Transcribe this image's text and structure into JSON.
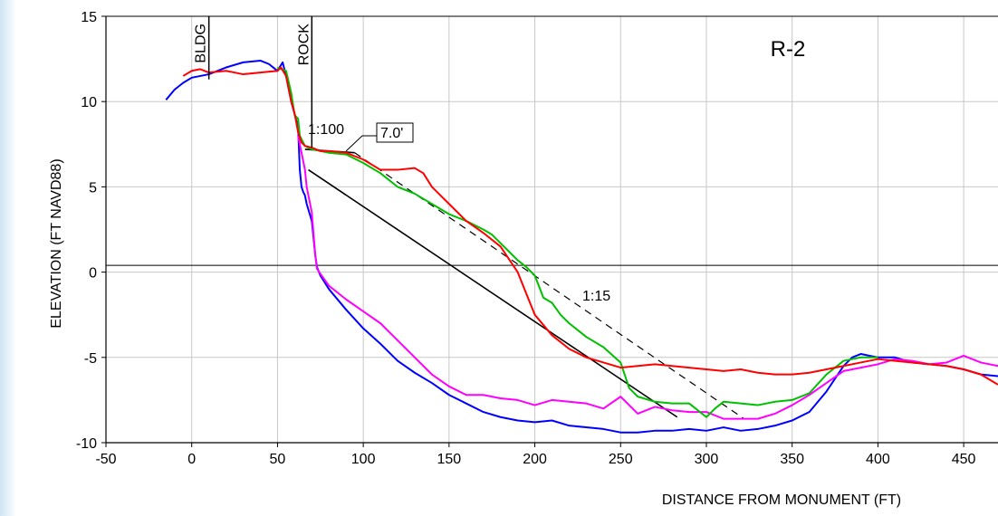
{
  "chart_data": {
    "type": "line",
    "title": "R-2",
    "xlabel": "DISTANCE FROM MONUMENT (FT)",
    "ylabel": "ELEVATION (FT NAVD88)",
    "xlim": [
      -50,
      470
    ],
    "ylim": [
      -10,
      15
    ],
    "xticks": [
      -50,
      0,
      50,
      100,
      150,
      200,
      250,
      300,
      350,
      400,
      450
    ],
    "yticks": [
      -10,
      -5,
      0,
      5,
      10,
      15
    ],
    "grid": true,
    "reference_line_y": 0.4,
    "vertical_markers": [
      {
        "label": "BLDG",
        "x": 10,
        "y_from": 11.3,
        "y_to": 15
      },
      {
        "label": "ROCK",
        "x": 70,
        "y_from": 7.3,
        "y_to": 15
      }
    ],
    "annotations": {
      "slope_upper": "1:100",
      "slope_lower": "1:15",
      "elevation_box": "7.0'"
    },
    "slope_lines": [
      {
        "name": "1:100",
        "style": "solid",
        "x": [
          66,
          95
        ],
        "y": [
          7.2,
          7.0
        ]
      },
      {
        "name": "1:15 design",
        "style": "dashed",
        "x": [
          95,
          322
        ],
        "y": [
          7.0,
          -8.6
        ]
      },
      {
        "name": "solid slope",
        "style": "solid",
        "x": [
          68,
          283
        ],
        "y": [
          6.0,
          -8.5
        ]
      }
    ],
    "series": [
      {
        "color": "#0000ff",
        "x": [
          -15,
          -10,
          -5,
          0,
          5,
          10,
          20,
          30,
          40,
          45,
          50,
          53,
          55,
          58,
          62,
          63,
          64,
          65,
          66,
          67,
          70,
          72,
          73,
          75,
          80,
          90,
          100,
          110,
          120,
          130,
          140,
          150,
          160,
          170,
          180,
          190,
          200,
          210,
          220,
          230,
          240,
          250,
          260,
          270,
          280,
          290,
          300,
          310,
          320,
          330,
          340,
          350,
          360,
          370,
          380,
          385,
          390,
          400,
          410,
          420,
          430,
          440,
          450,
          460,
          470
        ],
        "y": [
          10.1,
          10.7,
          11.1,
          11.4,
          11.5,
          11.6,
          12.0,
          12.3,
          12.4,
          12.2,
          11.8,
          12.3,
          11.5,
          10.0,
          8.5,
          6.0,
          5.0,
          4.7,
          4.5,
          4.0,
          3.0,
          1.0,
          0.3,
          -0.2,
          -1.0,
          -2.2,
          -3.3,
          -4.2,
          -5.2,
          -5.9,
          -6.5,
          -7.2,
          -7.7,
          -8.2,
          -8.5,
          -8.7,
          -8.8,
          -8.7,
          -9.0,
          -9.1,
          -9.2,
          -9.4,
          -9.4,
          -9.3,
          -9.3,
          -9.2,
          -9.3,
          -9.1,
          -9.3,
          -9.2,
          -9.0,
          -8.7,
          -8.2,
          -7.0,
          -5.5,
          -5.0,
          -4.8,
          -5.0,
          -5.0,
          -5.3,
          -5.4,
          -5.5,
          -5.7,
          -6.0,
          -6.1
        ]
      },
      {
        "color": "#ff00ff",
        "x": [
          62,
          64,
          66,
          67,
          68,
          70,
          72,
          73,
          75,
          80,
          90,
          100,
          110,
          120,
          130,
          140,
          150,
          160,
          170,
          180,
          190,
          200,
          210,
          220,
          230,
          240,
          250,
          260,
          270,
          280,
          290,
          300,
          310,
          320,
          330,
          340,
          350,
          360,
          370,
          380,
          390,
          400,
          410,
          420,
          430,
          440,
          450,
          460,
          470
        ],
        "y": [
          8.0,
          7.0,
          6.0,
          5.0,
          4.5,
          3.5,
          1.0,
          0.2,
          -0.1,
          -0.8,
          -1.6,
          -2.3,
          -3.0,
          -4.0,
          -5.0,
          -6.0,
          -6.7,
          -7.2,
          -7.2,
          -7.4,
          -7.5,
          -7.8,
          -7.5,
          -7.6,
          -7.7,
          -8.0,
          -7.3,
          -8.3,
          -7.9,
          -8.1,
          -8.2,
          -8.2,
          -8.6,
          -8.6,
          -8.6,
          -8.3,
          -7.8,
          -7.2,
          -6.5,
          -5.8,
          -5.6,
          -5.4,
          -5.1,
          -5.2,
          -5.4,
          -5.3,
          -4.9,
          -5.3,
          -5.5
        ]
      },
      {
        "color": "#00c000",
        "x": [
          50,
          55,
          58,
          60,
          62,
          63,
          64,
          66,
          70,
          80,
          90,
          100,
          110,
          120,
          130,
          140,
          150,
          160,
          170,
          175,
          180,
          185,
          190,
          195,
          200,
          205,
          210,
          215,
          220,
          230,
          240,
          250,
          255,
          260,
          270,
          280,
          290,
          300,
          305,
          310,
          320,
          330,
          340,
          350,
          360,
          370,
          380,
          390,
          400
        ],
        "y": [
          12.0,
          11.8,
          10.5,
          9.2,
          9.0,
          8.0,
          7.8,
          7.4,
          7.2,
          7.0,
          6.9,
          6.4,
          5.8,
          5.0,
          4.6,
          4.0,
          3.4,
          3.0,
          2.5,
          2.2,
          1.7,
          1.2,
          0.7,
          0.3,
          -0.2,
          -1.5,
          -1.8,
          -2.5,
          -3.0,
          -3.8,
          -4.4,
          -5.3,
          -6.8,
          -7.3,
          -7.6,
          -7.7,
          -7.7,
          -8.5,
          -8.0,
          -7.6,
          -7.7,
          -7.8,
          -7.6,
          -7.5,
          -7.1,
          -6.0,
          -5.2,
          -5.0,
          -5.0
        ]
      },
      {
        "color": "#ff0000",
        "x": [
          -5,
          0,
          5,
          10,
          20,
          30,
          40,
          50,
          52,
          55,
          58,
          60,
          62,
          64,
          66,
          70,
          75,
          80,
          90,
          100,
          110,
          120,
          130,
          135,
          140,
          150,
          160,
          170,
          180,
          190,
          200,
          210,
          220,
          230,
          240,
          250,
          260,
          270,
          280,
          290,
          300,
          310,
          320,
          330,
          340,
          350,
          360,
          370,
          380,
          390,
          400,
          410,
          420,
          430,
          440,
          450,
          460,
          470
        ],
        "y": [
          11.5,
          11.8,
          11.9,
          11.7,
          11.8,
          11.6,
          11.7,
          11.8,
          12.0,
          11.5,
          10.0,
          9.3,
          8.2,
          7.6,
          7.4,
          7.3,
          7.1,
          7.1,
          7.0,
          6.6,
          6.0,
          6.0,
          6.1,
          5.8,
          5.0,
          4.0,
          3.0,
          2.3,
          1.5,
          0.0,
          -2.5,
          -3.7,
          -4.5,
          -5.0,
          -5.3,
          -5.6,
          -5.5,
          -5.4,
          -5.5,
          -5.6,
          -5.7,
          -5.8,
          -5.7,
          -5.9,
          -6.0,
          -6.0,
          -5.9,
          -5.7,
          -5.5,
          -5.3,
          -5.1,
          -5.2,
          -5.3,
          -5.4,
          -5.5,
          -5.7,
          -6.0,
          -6.6
        ]
      }
    ]
  }
}
